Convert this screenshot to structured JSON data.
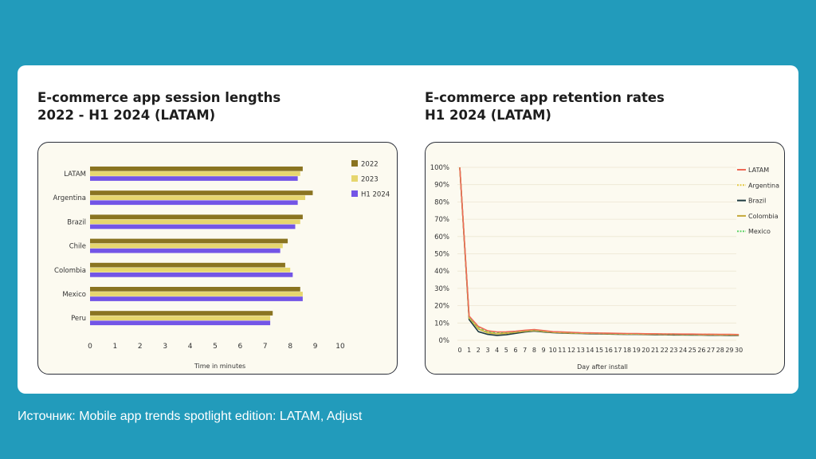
{
  "charts": {
    "left_title_line1": "E-commerce app session lengths",
    "left_title_line2": "2022 - H1 2024 (LATAM)",
    "right_title_line1": "E-commerce app retention rates",
    "right_title_line2": "H1 2024 (LATAM)"
  },
  "source": {
    "text": "Источник: Mobile app trends spotlight edition: LATAM, Adjust"
  },
  "colors": {
    "background": "#229bbb",
    "s2022": "#8a7421",
    "s2023": "#e6d66e",
    "sH1": "#7355e6",
    "LATAM": "#ef6a57",
    "Argentina": "#e2c845",
    "Brazil": "#1e3a40",
    "Colombia": "#c4a93a",
    "Mexico": "#5fd46a"
  },
  "chart_data": [
    {
      "type": "bar",
      "orientation": "horizontal",
      "title": "E-commerce app session lengths 2022 - H1 2024 (LATAM)",
      "xlabel": "Time in minutes",
      "ylabel": "",
      "xlim": [
        0,
        10
      ],
      "xticks": [
        "0",
        "1",
        "2",
        "3",
        "4",
        "5",
        "6",
        "7",
        "8",
        "9",
        "10"
      ],
      "categories": [
        "LATAM",
        "Argentina",
        "Brazil",
        "Chile",
        "Colombia",
        "Mexico",
        "Peru"
      ],
      "legend_position": "top-right",
      "series": [
        {
          "name": "2022",
          "color": "#8a7421",
          "values": [
            8.5,
            8.9,
            8.5,
            7.9,
            7.8,
            8.4,
            7.3
          ]
        },
        {
          "name": "2023",
          "color": "#e6d66e",
          "values": [
            8.4,
            8.6,
            8.4,
            7.7,
            8.0,
            8.5,
            7.2
          ]
        },
        {
          "name": "H1 2024",
          "color": "#7355e6",
          "values": [
            8.3,
            8.3,
            8.2,
            7.6,
            8.1,
            8.5,
            7.2
          ]
        }
      ]
    },
    {
      "type": "line",
      "title": "E-commerce app retention rates H1 2024 (LATAM)",
      "xlabel": "Day after install",
      "ylabel": "",
      "ylim": [
        0,
        100
      ],
      "yticks": [
        "0%",
        "10%",
        "20%",
        "30%",
        "40%",
        "50%",
        "60%",
        "70%",
        "80%",
        "90%",
        "100%"
      ],
      "x": [
        0,
        1,
        2,
        3,
        4,
        5,
        6,
        7,
        8,
        9,
        10,
        11,
        12,
        13,
        14,
        15,
        16,
        17,
        18,
        19,
        20,
        21,
        22,
        23,
        24,
        25,
        26,
        27,
        28,
        29,
        30
      ],
      "xticks": [
        "0",
        "1",
        "2",
        "3",
        "4",
        "5",
        "6",
        "7",
        "8",
        "9",
        "10",
        "11",
        "12",
        "13",
        "14",
        "15",
        "16",
        "17",
        "18",
        "19",
        "20",
        "21",
        "22",
        "23",
        "24",
        "25",
        "26",
        "27",
        "28",
        "29",
        "30"
      ],
      "legend_position": "top-right",
      "series": [
        {
          "name": "LATAM",
          "color": "#ef6a57",
          "dash": "",
          "values": [
            100,
            14,
            8,
            5.5,
            4.8,
            4.9,
            5.2,
            5.8,
            6.2,
            5.6,
            5,
            4.8,
            4.6,
            4.4,
            4.3,
            4.2,
            4.1,
            4,
            3.9,
            3.9,
            3.8,
            3.8,
            3.7,
            3.7,
            3.6,
            3.6,
            3.5,
            3.5,
            3.4,
            3.4,
            3.3
          ]
        },
        {
          "name": "Argentina",
          "color": "#e2c845",
          "dash": "4,3",
          "values": [
            100,
            13,
            7,
            4.6,
            4,
            4.3,
            4.8,
            5.4,
            5.8,
            5.2,
            4.7,
            4.5,
            4.3,
            4.2,
            4.1,
            4,
            3.9,
            3.8,
            3.7,
            3.7,
            3.6,
            3.6,
            3.5,
            3.5,
            3.4,
            3.4,
            3.3,
            3.3,
            3.2,
            3.2,
            3.1
          ]
        },
        {
          "name": "Brazil",
          "color": "#1e3a40",
          "dash": "",
          "values": [
            100,
            12,
            5,
            3.4,
            2.8,
            3.2,
            4,
            4.8,
            5.3,
            4.8,
            4.4,
            4.2,
            4,
            3.9,
            3.8,
            3.7,
            3.6,
            3.5,
            3.4,
            3.4,
            3.3,
            3.2,
            3.2,
            3.1,
            3.1,
            3,
            3,
            2.9,
            2.9,
            2.8,
            2.8
          ]
        },
        {
          "name": "Colombia",
          "color": "#c4a93a",
          "dash": "",
          "values": [
            100,
            13,
            6.5,
            4.3,
            3.7,
            4,
            4.6,
            5.2,
            5.6,
            5.1,
            4.6,
            4.4,
            4.2,
            4.1,
            4,
            3.9,
            3.8,
            3.7,
            3.6,
            3.6,
            3.5,
            3.5,
            3.4,
            3.4,
            3.3,
            3.3,
            3.2,
            3.2,
            3.1,
            3.1,
            3
          ]
        },
        {
          "name": "Mexico",
          "color": "#5fd46a",
          "dash": "3,2",
          "values": [
            100,
            13.5,
            7.5,
            5,
            4.4,
            4.6,
            5,
            5.6,
            6,
            5.4,
            4.9,
            4.7,
            4.5,
            4.3,
            4.2,
            4.1,
            4,
            3.9,
            3.8,
            3.8,
            3.7,
            3.7,
            3.6,
            3.6,
            3.5,
            3.5,
            3.4,
            3.4,
            3.3,
            3.3,
            3.2
          ]
        }
      ]
    }
  ]
}
